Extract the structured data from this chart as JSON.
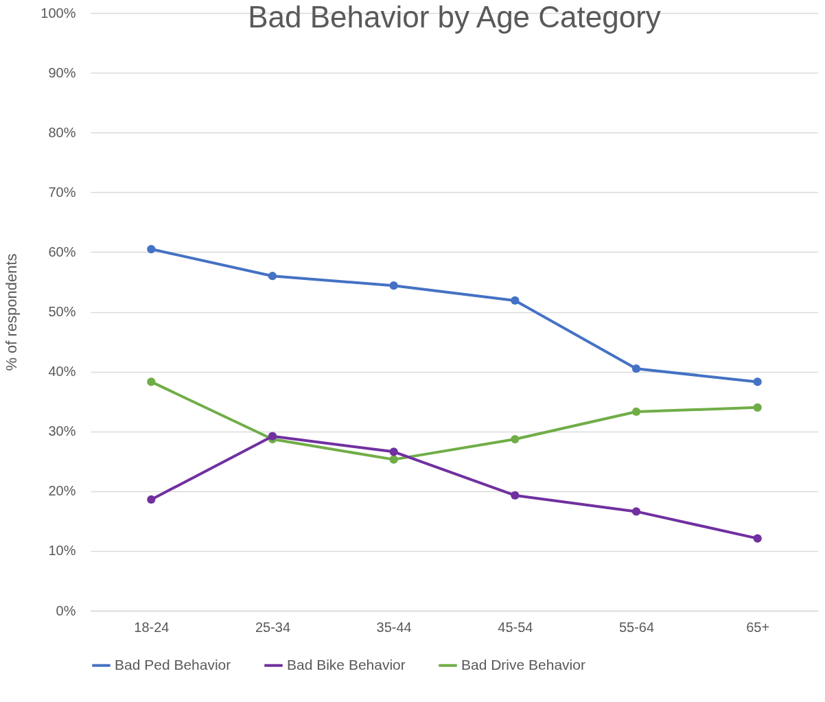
{
  "chart_data": {
    "type": "line",
    "title": "Bad Behavior by Age Category",
    "ylabel": "% of respondents",
    "categories": [
      "18-24",
      "25-34",
      "35-44",
      "45-54",
      "55-64",
      "65+"
    ],
    "series": [
      {
        "name": "Bad Ped Behavior",
        "color": "#4472c4",
        "values": [
          60.5,
          56.0,
          54.4,
          51.9,
          40.5,
          38.3
        ]
      },
      {
        "name": "Bad Bike Behavior",
        "color": "#7030a0",
        "values": [
          18.6,
          29.2,
          26.6,
          19.3,
          16.6,
          12.1
        ]
      },
      {
        "name": "Bad Drive Behavior",
        "color": "#70ad47",
        "values": [
          38.3,
          28.7,
          25.3,
          28.7,
          33.3,
          34.0
        ]
      }
    ],
    "ylim": [
      0,
      100
    ],
    "yticks": [
      {
        "value": 0,
        "label": "0%"
      },
      {
        "value": 10,
        "label": "10%"
      },
      {
        "value": 20,
        "label": "20%"
      },
      {
        "value": 30,
        "label": "30%"
      },
      {
        "value": 40,
        "label": "40%"
      },
      {
        "value": 50,
        "label": "50%"
      },
      {
        "value": 60,
        "label": "60%"
      },
      {
        "value": 70,
        "label": "70%"
      },
      {
        "value": 80,
        "label": "80%"
      },
      {
        "value": 90,
        "label": "90%"
      },
      {
        "value": 100,
        "label": "100%"
      }
    ],
    "grid": "y",
    "legend": "bottom",
    "marker": "circle",
    "line_style": "solid"
  }
}
